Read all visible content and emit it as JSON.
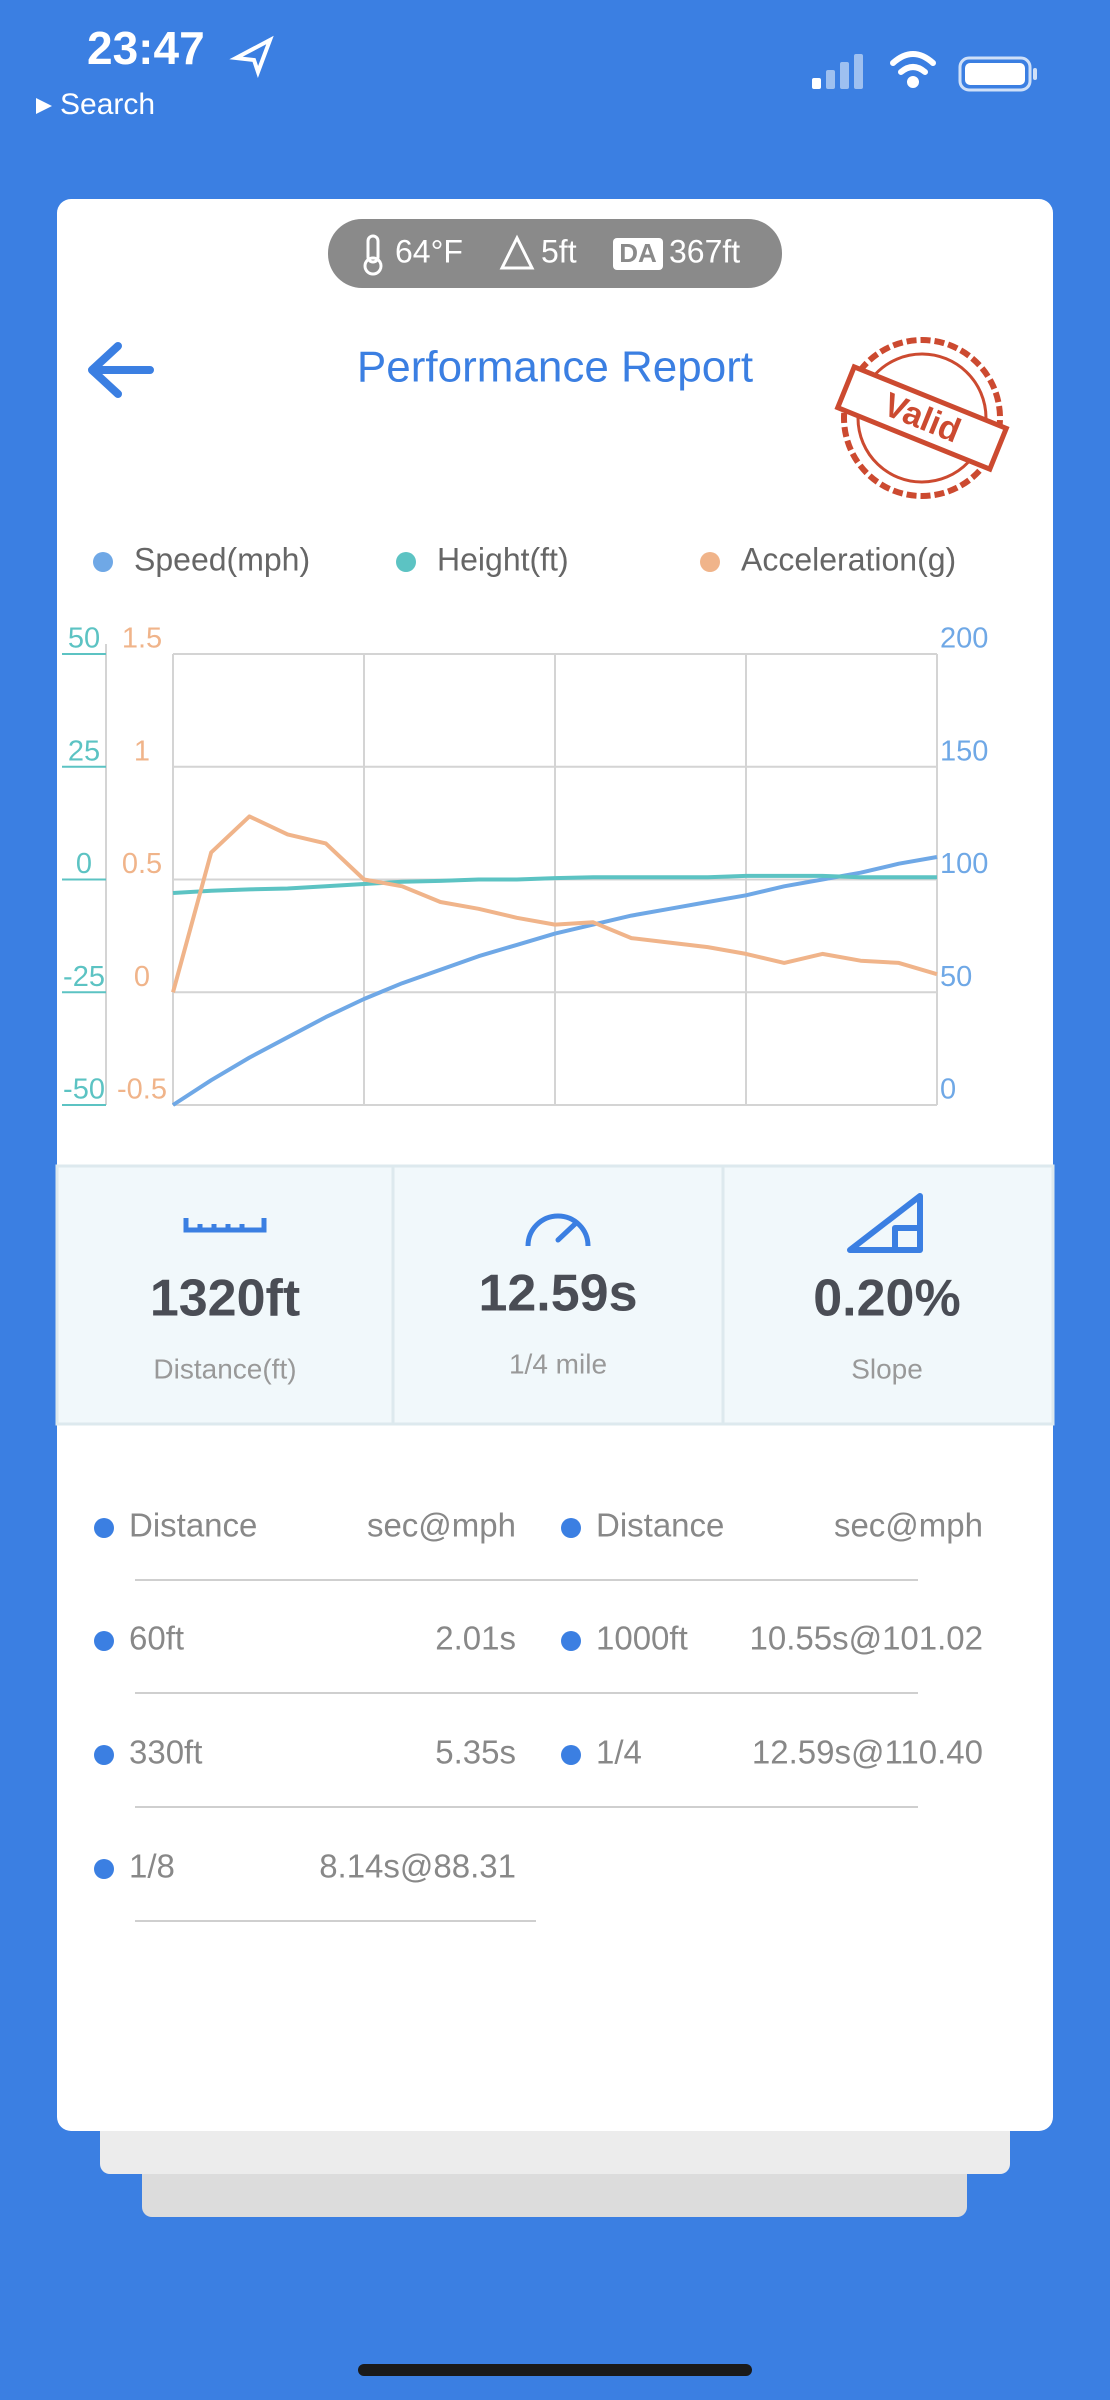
{
  "status_bar": {
    "time": "23:47",
    "back_label": "Search"
  },
  "conditions": {
    "temperature": "64°F",
    "elevation": "5ft",
    "density_altitude_badge": "DA",
    "density_altitude": "367ft"
  },
  "header": {
    "title": "Performance Report",
    "stamp": "Valid"
  },
  "chart_data": {
    "type": "line",
    "series": [
      {
        "name": "Speed(mph)",
        "color": "#6fa8e6",
        "axis": "y2",
        "values": [
          0,
          11,
          21,
          30,
          39,
          47,
          54,
          60,
          66,
          71,
          76,
          80,
          84,
          87,
          90,
          93,
          97,
          100,
          103,
          107,
          110
        ]
      },
      {
        "name": "Height(ft)",
        "color": "#5cc3c3",
        "axis": "y3",
        "values": [
          -3,
          -2.5,
          -2.2,
          -2,
          -1.5,
          -1,
          -0.5,
          -0.3,
          0,
          0,
          0.3,
          0.5,
          0.5,
          0.5,
          0.5,
          0.8,
          0.8,
          0.8,
          0.5,
          0.5,
          0.5
        ]
      },
      {
        "name": "Acceleration(g)",
        "color": "#f0b48a",
        "values": [
          0,
          0.62,
          0.78,
          0.7,
          0.66,
          0.5,
          0.47,
          0.4,
          0.37,
          0.33,
          0.3,
          0.31,
          0.24,
          0.22,
          0.2,
          0.17,
          0.13,
          0.17,
          0.14,
          0.13,
          0.08
        ]
      }
    ],
    "ylim": [
      -0.5,
      1.5
    ],
    "yticks": [
      -0.5,
      0,
      0.5,
      1,
      1.5
    ],
    "y2lim": [
      0,
      200
    ],
    "y2ticks": [
      0,
      50,
      100,
      150,
      200
    ],
    "y3lim": [
      -50,
      50
    ],
    "y3ticks": [
      -50,
      -25,
      0,
      25,
      50
    ],
    "grid": true
  },
  "stats": [
    {
      "value": "1320ft",
      "label": "Distance(ft)"
    },
    {
      "value": "12.59s",
      "label": "1/4 mile"
    },
    {
      "value": "0.20%",
      "label": "Slope"
    }
  ],
  "splits": {
    "left": {
      "header": [
        "Distance",
        "sec@mph"
      ],
      "rows": [
        [
          "60ft",
          "2.01s"
        ],
        [
          "330ft",
          "5.35s"
        ],
        [
          "1/8",
          "8.14s@88.31"
        ]
      ]
    },
    "right": {
      "header": [
        "Distance",
        "sec@mph"
      ],
      "rows": [
        [
          "1000ft",
          "10.55s@101.02"
        ],
        [
          "1/4",
          "12.59s@110.40"
        ]
      ]
    }
  }
}
